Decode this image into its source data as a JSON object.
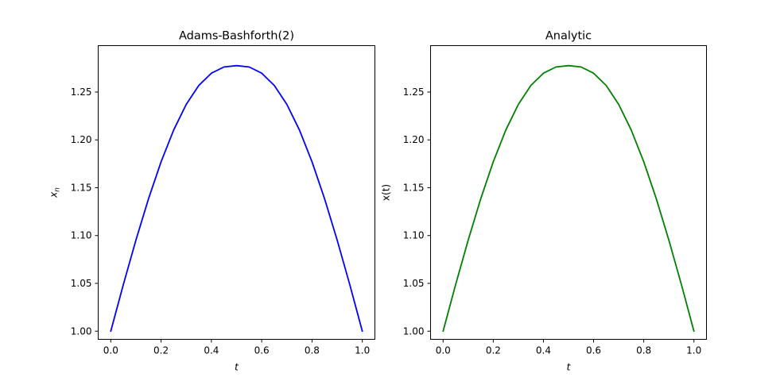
{
  "chart_data": [
    {
      "type": "line",
      "title": "Adams-Bashforth(2)",
      "xlabel": "t",
      "ylabel": "x_n",
      "xlim": [
        -0.05,
        1.05
      ],
      "ylim": [
        0.9915,
        1.2985
      ],
      "xticks": [
        0.0,
        0.2,
        0.4,
        0.6,
        0.8,
        1.0
      ],
      "xtick_labels": [
        "0.0",
        "0.2",
        "0.4",
        "0.6",
        "0.8",
        "1.0"
      ],
      "yticks": [
        1.0,
        1.05,
        1.1,
        1.15,
        1.2,
        1.25
      ],
      "ytick_labels": [
        "1.00",
        "1.05",
        "1.10",
        "1.15",
        "1.20",
        "1.25"
      ],
      "grid": false,
      "series": [
        {
          "color": "#0000ff",
          "x": [
            0.0,
            0.05,
            0.1,
            0.15,
            0.2,
            0.25,
            0.3,
            0.35,
            0.4,
            0.45,
            0.5,
            0.55,
            0.6,
            0.65,
            0.7,
            0.75,
            0.8,
            0.85,
            0.9,
            0.95,
            1.0
          ],
          "y": [
            1.0,
            1.0488,
            1.0952,
            1.1384,
            1.1771,
            1.2103,
            1.2371,
            1.2569,
            1.2697,
            1.2762,
            1.2776,
            1.2762,
            1.2697,
            1.2569,
            1.2371,
            1.2103,
            1.1771,
            1.1384,
            1.0952,
            1.0488,
            1.0
          ]
        }
      ]
    },
    {
      "type": "line",
      "title": "Analytic",
      "xlabel": "t",
      "ylabel": "x(t)",
      "xlim": [
        -0.05,
        1.05
      ],
      "ylim": [
        0.9915,
        1.2985
      ],
      "xticks": [
        0.0,
        0.2,
        0.4,
        0.6,
        0.8,
        1.0
      ],
      "xtick_labels": [
        "0.0",
        "0.2",
        "0.4",
        "0.6",
        "0.8",
        "1.0"
      ],
      "yticks": [
        1.0,
        1.05,
        1.1,
        1.15,
        1.2,
        1.25
      ],
      "ytick_labels": [
        "1.00",
        "1.05",
        "1.10",
        "1.15",
        "1.20",
        "1.25"
      ],
      "grid": false,
      "series": [
        {
          "color": "#008000",
          "x": [
            0.0,
            0.05,
            0.1,
            0.15,
            0.2,
            0.25,
            0.3,
            0.35,
            0.4,
            0.45,
            0.5,
            0.55,
            0.6,
            0.65,
            0.7,
            0.75,
            0.8,
            0.85,
            0.9,
            0.95,
            1.0
          ],
          "y": [
            1.0,
            1.0488,
            1.0952,
            1.1384,
            1.1771,
            1.2103,
            1.2371,
            1.2569,
            1.2697,
            1.2762,
            1.2776,
            1.2762,
            1.2697,
            1.2569,
            1.2371,
            1.2103,
            1.1771,
            1.1384,
            1.0952,
            1.0488,
            1.0
          ]
        }
      ]
    }
  ]
}
